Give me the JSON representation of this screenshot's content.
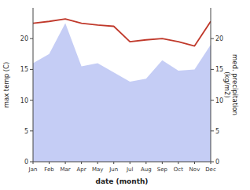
{
  "chart_data": {
    "type": "line",
    "xlabel": "date (month)",
    "ylabel": "max temp (C)",
    "y2label": "med. precipitation\n(kg/m2)",
    "categories": [
      "Jan",
      "Feb",
      "Mar",
      "Apr",
      "May",
      "Jun",
      "Jul",
      "Aug",
      "Sep",
      "Oct",
      "Nov",
      "Dec"
    ],
    "series": [
      {
        "type": "area",
        "color": "#c5cdf5",
        "values": [
          16.0,
          17.5,
          22.5,
          15.5,
          16.0,
          14.5,
          13.0,
          13.5,
          16.5,
          14.8,
          15.0,
          19.0
        ]
      },
      {
        "type": "line",
        "axis": "y2",
        "color": "#c0392b",
        "values": [
          22.5,
          22.8,
          23.2,
          22.5,
          22.2,
          22.0,
          19.5,
          19.8,
          20.0,
          19.5,
          18.8,
          22.8
        ]
      }
    ],
    "ylim": [
      0,
      25
    ],
    "yticks": [
      0,
      5,
      10,
      15,
      20
    ],
    "y2lim": [
      0,
      25
    ],
    "y2ticks": [
      0,
      5,
      10,
      15,
      20
    ],
    "grid": false
  }
}
